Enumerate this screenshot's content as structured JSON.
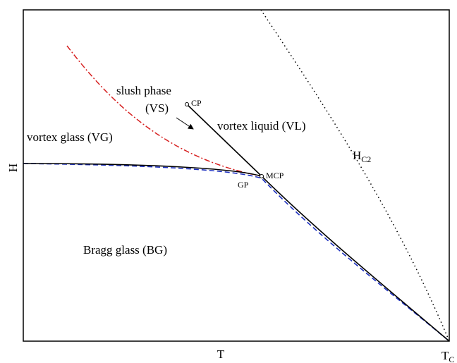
{
  "axes": {
    "y_label": "H",
    "x_label": "T",
    "x_end": {
      "base": "T",
      "sub": "C"
    }
  },
  "regions": {
    "vortex_glass": "vortex glass (VG)",
    "slush_line1": "slush phase",
    "slush_line2": "(VS)",
    "vortex_liquid": "vortex liquid (VL)",
    "bragg_glass": "Bragg glass (BG)"
  },
  "points": {
    "cp": "CP",
    "mcp": "MCP",
    "gp": "GP"
  },
  "hc2": {
    "base": "H",
    "sub": "C2"
  }
}
